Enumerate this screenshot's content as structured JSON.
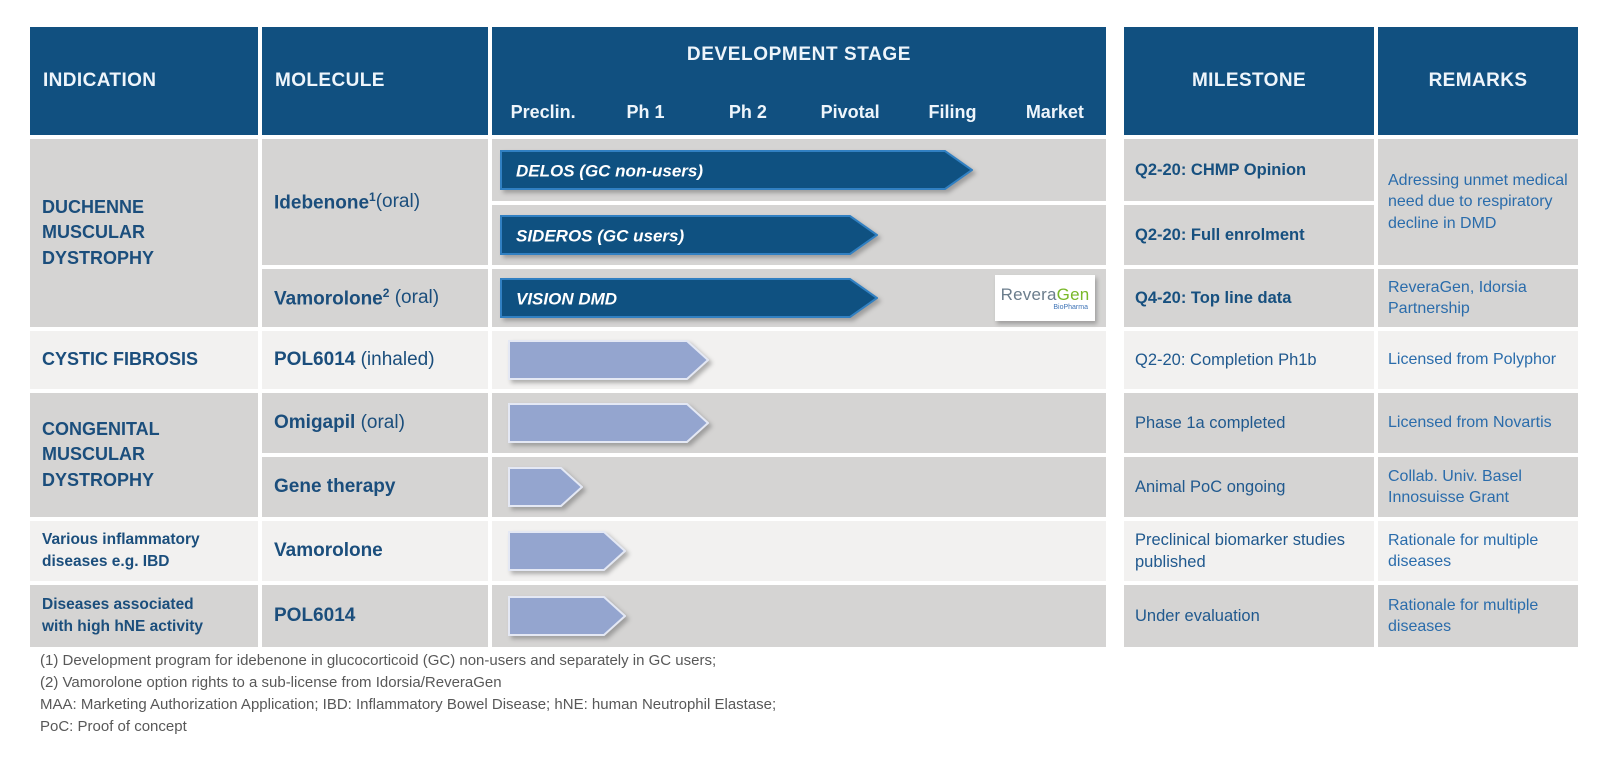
{
  "colors": {
    "header_blue": "#115080",
    "bar_dark_fill": "#0f5181",
    "bar_dark_border": "#3180c2",
    "bar_light_fill": "#94a5cf",
    "bar_light_border": "#e4e8f4",
    "row_gray": "#d5d4d3",
    "row_light": "#f2f1f0",
    "text_dark_blue": "#1b4e7c",
    "text_remark_blue": "#2a6cab",
    "footnote_gray": "#585858"
  },
  "header": {
    "indication": "INDICATION",
    "molecule": "MOLECULE",
    "development_stage": "DEVELOPMENT STAGE",
    "stages": [
      "Preclin.",
      "Ph 1",
      "Ph 2",
      "Pivotal",
      "Filing",
      "Market"
    ],
    "milestone": "MILESTONE",
    "remarks": "REMARKS"
  },
  "indications": {
    "dmd": "DUCHENNE\nMUSCULAR\nDYSTROPHY",
    "cf": "CYSTIC FIBROSIS",
    "cmd": "CONGENITAL\nMUSCULAR\nDYSTROPHY",
    "ibd": "Various inflammatory\ndiseases e.g. IBD",
    "hne": "Diseases associated\nwith high hNE activity"
  },
  "molecules": {
    "idebenone": {
      "name": "Idebenone",
      "sup": "1",
      "suffix": "(oral)"
    },
    "vamorolone_dmd": {
      "name": "Vamorolone",
      "sup": "2",
      "suffix": " (oral)"
    },
    "pol6014_cf": {
      "name": "POL6014",
      "suffix": " (inhaled)"
    },
    "omigapil": {
      "name": "Omigapil",
      "suffix": " (oral)"
    },
    "gene_therapy": {
      "name": "Gene therapy"
    },
    "vamorolone_ibd": {
      "name": "Vamorolone"
    },
    "pol6014_hne": {
      "name": "POL6014"
    }
  },
  "milestones": [
    "Q2-20: CHMP Opinion",
    "Q2-20: Full enrolment",
    "Q4-20: Top line data",
    "Q2-20: Completion Ph1b",
    "Phase 1a completed",
    "Animal PoC ongoing",
    "Preclinical biomarker studies published",
    "Under evaluation"
  ],
  "remarks": [
    "Adressing unmet medical need due to respiratory decline in DMD",
    "ReveraGen, Idorsia Partnership",
    "Licensed from Polyphor",
    "Licensed from Novartis",
    "Collab. Univ. Basel Innosuisse Grant",
    "Rationale for multiple diseases",
    "Rationale  for multiple diseases"
  ],
  "logo": {
    "part1": "Revera",
    "part2": "Gen",
    "sub": "BioPharma"
  },
  "footnotes": [
    "(1) Development program for idebenone in glucocorticoid (GC) non-users and separately in GC users;",
    "(2) Vamorolone option rights to a sub-license from Idorsia/ReveraGen",
    "MAA: Marketing Authorization Application; IBD: Inflammatory Bowel Disease; hNE: human Neutrophil Elastase;",
    "PoC: Proof of concept"
  ],
  "chart_data": {
    "type": "table",
    "title": "Development pipeline: stage progress per program",
    "stage_axis": [
      "Preclin.",
      "Ph 1",
      "Ph 2",
      "Pivotal",
      "Filing",
      "Market"
    ],
    "units": "start/end expressed in stage-column units (0 = start of Preclin., 6 = end of Market)",
    "bars": [
      {
        "indication": "Duchenne Muscular Dystrophy",
        "molecule": "Idebenone",
        "trial": "DELOS (GC non-users)",
        "start": 0.08,
        "end": 4.7,
        "style": "dark"
      },
      {
        "indication": "Duchenne Muscular Dystrophy",
        "molecule": "Idebenone",
        "trial": "SIDEROS (GC users)",
        "start": 0.08,
        "end": 3.77,
        "style": "dark"
      },
      {
        "indication": "Duchenne Muscular Dystrophy",
        "molecule": "Vamorolone",
        "trial": "VISION DMD",
        "start": 0.08,
        "end": 3.77,
        "style": "dark",
        "logo": true
      },
      {
        "indication": "Cystic Fibrosis",
        "molecule": "POL6014",
        "trial": "",
        "start": 0.16,
        "end": 2.12,
        "style": "light"
      },
      {
        "indication": "Congenital Muscular Dystrophy",
        "molecule": "Omigapil",
        "trial": "",
        "start": 0.16,
        "end": 2.12,
        "style": "light"
      },
      {
        "indication": "Congenital Muscular Dystrophy",
        "molecule": "Gene therapy",
        "trial": "",
        "start": 0.16,
        "end": 0.89,
        "style": "light"
      },
      {
        "indication": "Various inflammatory diseases e.g. IBD",
        "molecule": "Vamorolone",
        "trial": "",
        "start": 0.16,
        "end": 1.31,
        "style": "light"
      },
      {
        "indication": "Diseases associated with high hNE activity",
        "molecule": "POL6014",
        "trial": "",
        "start": 0.16,
        "end": 1.31,
        "style": "light"
      }
    ]
  }
}
